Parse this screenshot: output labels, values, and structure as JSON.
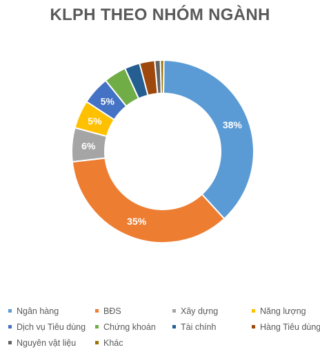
{
  "chart_data": {
    "type": "pie",
    "subtype": "donut",
    "title": "KLPH THEO NHÓM NGÀNH",
    "legend_position": "bottom",
    "slices": [
      {
        "name": "Ngân hàng",
        "value": 38,
        "label": "38%",
        "color": "#5B9BD5"
      },
      {
        "name": "BĐS",
        "value": 35,
        "label": "35%",
        "color": "#ED7D31"
      },
      {
        "name": "Xây dựng",
        "value": 6,
        "label": "6%",
        "color": "#A5A5A5"
      },
      {
        "name": "Năng lượng",
        "value": 5,
        "label": "5%",
        "color": "#FFC000"
      },
      {
        "name": "Dịch vụ Tiêu dùng",
        "value": 5,
        "label": "5%",
        "color": "#4472C4"
      },
      {
        "name": "Chứng khoán",
        "value": 4,
        "label": "",
        "color": "#70AD47"
      },
      {
        "name": "Tài chính",
        "value": 2.7,
        "label": "",
        "color": "#255E91"
      },
      {
        "name": "Hàng Tiêu dùng",
        "value": 2.7,
        "label": "",
        "color": "#9E480E"
      },
      {
        "name": "Nguyên vật liệu",
        "value": 1,
        "label": "",
        "color": "#636363"
      },
      {
        "name": "Khác",
        "value": 0.6,
        "label": "",
        "color": "#997300"
      }
    ]
  }
}
